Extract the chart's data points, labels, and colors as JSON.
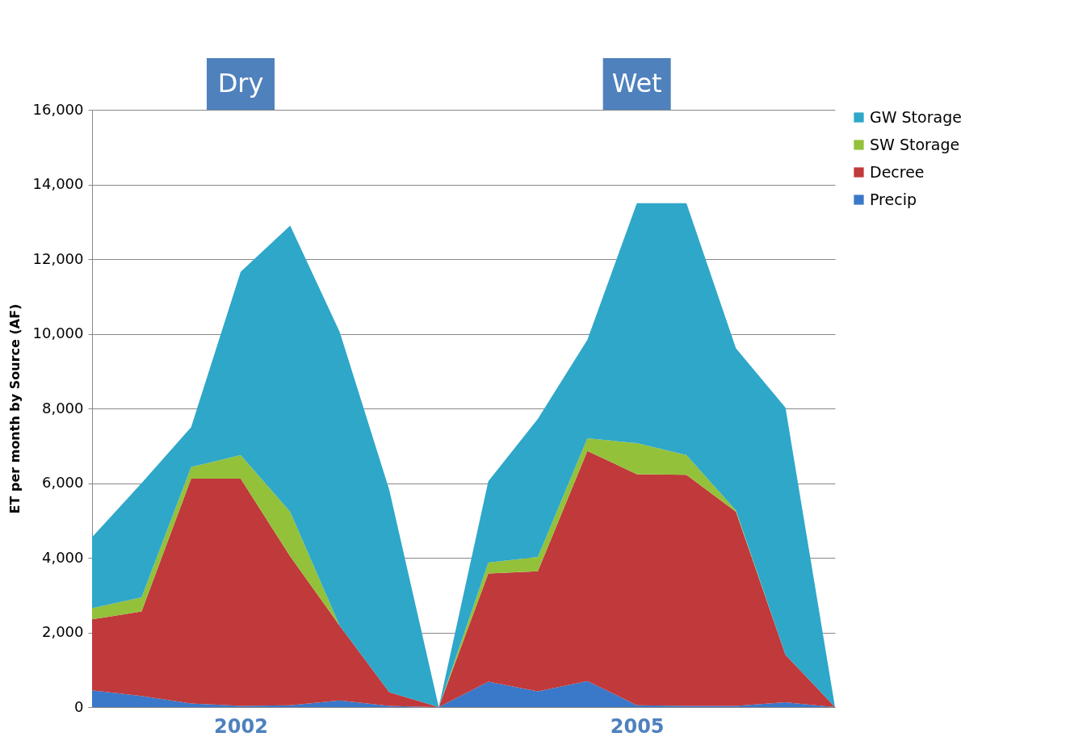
{
  "chart_data": {
    "type": "area",
    "stacked": true,
    "categories": [
      null,
      null,
      null,
      "2002",
      null,
      null,
      null,
      null,
      null,
      null,
      null,
      "2005",
      null,
      null,
      null,
      null
    ],
    "ylabel": "ET per month by Source (AF)",
    "annotations": [
      "Dry",
      "Wet"
    ],
    "ylim": [
      0,
      16000
    ],
    "yticks": [
      0,
      {
        "value": 2000,
        "label": "2,000"
      },
      {
        "value": 4000,
        "label": "4,000"
      },
      {
        "value": 6000,
        "label": "6,000"
      },
      {
        "value": 8000,
        "label": "8,000"
      },
      {
        "value": 10000,
        "label": "10,000"
      },
      {
        "value": 12000,
        "label": "12,000"
      },
      {
        "value": 14000,
        "label": "14,000"
      },
      {
        "value": 16000,
        "label": "16,000"
      }
    ],
    "grid": "y",
    "legend": "right",
    "series": [
      {
        "name": "Precip",
        "color": "#3a78c9",
        "values": [
          450,
          300,
          100,
          30,
          50,
          180,
          30,
          0,
          680,
          420,
          700,
          50,
          30,
          30,
          130,
          0
        ]
      },
      {
        "name": "Decree",
        "color": "#c0393b",
        "values": [
          1900,
          2260,
          6020,
          6090,
          3990,
          2000,
          370,
          0,
          2900,
          3220,
          6160,
          6190,
          6190,
          5200,
          1270,
          0
        ]
      },
      {
        "name": "SW Storage",
        "color": "#93c13a",
        "values": [
          300,
          380,
          310,
          630,
          1190,
          0,
          0,
          0,
          290,
          380,
          340,
          830,
          530,
          40,
          0,
          0
        ]
      },
      {
        "name": "GW Storage",
        "color": "#2ea7c9",
        "values": [
          1900,
          3060,
          1070,
          4910,
          7670,
          7870,
          5420,
          0,
          2180,
          3700,
          2640,
          6430,
          6750,
          4340,
          6620,
          0
        ]
      }
    ]
  }
}
